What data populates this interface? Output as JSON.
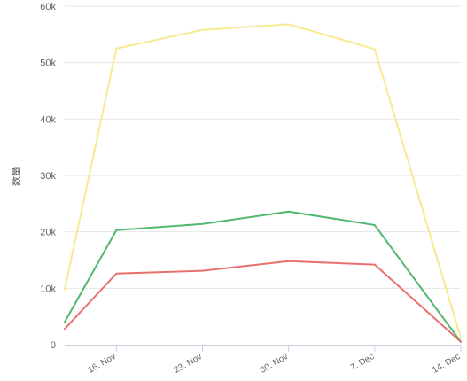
{
  "chart_data": {
    "type": "line",
    "title": "",
    "xlabel": "",
    "ylabel": "数量",
    "categories": [
      "16. Nov",
      "23. Nov",
      "30. Nov",
      "7. Dec",
      "14. Dec"
    ],
    "x": [
      -4.2,
      0,
      7,
      14,
      21,
      28
    ],
    "ylim": [
      0,
      60000
    ],
    "yticks": [
      0,
      10000,
      20000,
      30000,
      40000,
      50000,
      60000
    ],
    "ytick_labels": [
      "0",
      "10k",
      "20k",
      "30k",
      "40k",
      "50k",
      "60k"
    ],
    "grid": true,
    "series": [
      {
        "color": "#f7e98e",
        "values": [
          9800,
          52500,
          55800,
          56800,
          52400,
          1200
        ]
      },
      {
        "color": "#52b86e",
        "values": [
          4000,
          20300,
          21400,
          23600,
          21200,
          500
        ]
      },
      {
        "color": "#e8706a",
        "values": [
          2800,
          12600,
          13100,
          14800,
          14200,
          500
        ]
      }
    ]
  }
}
